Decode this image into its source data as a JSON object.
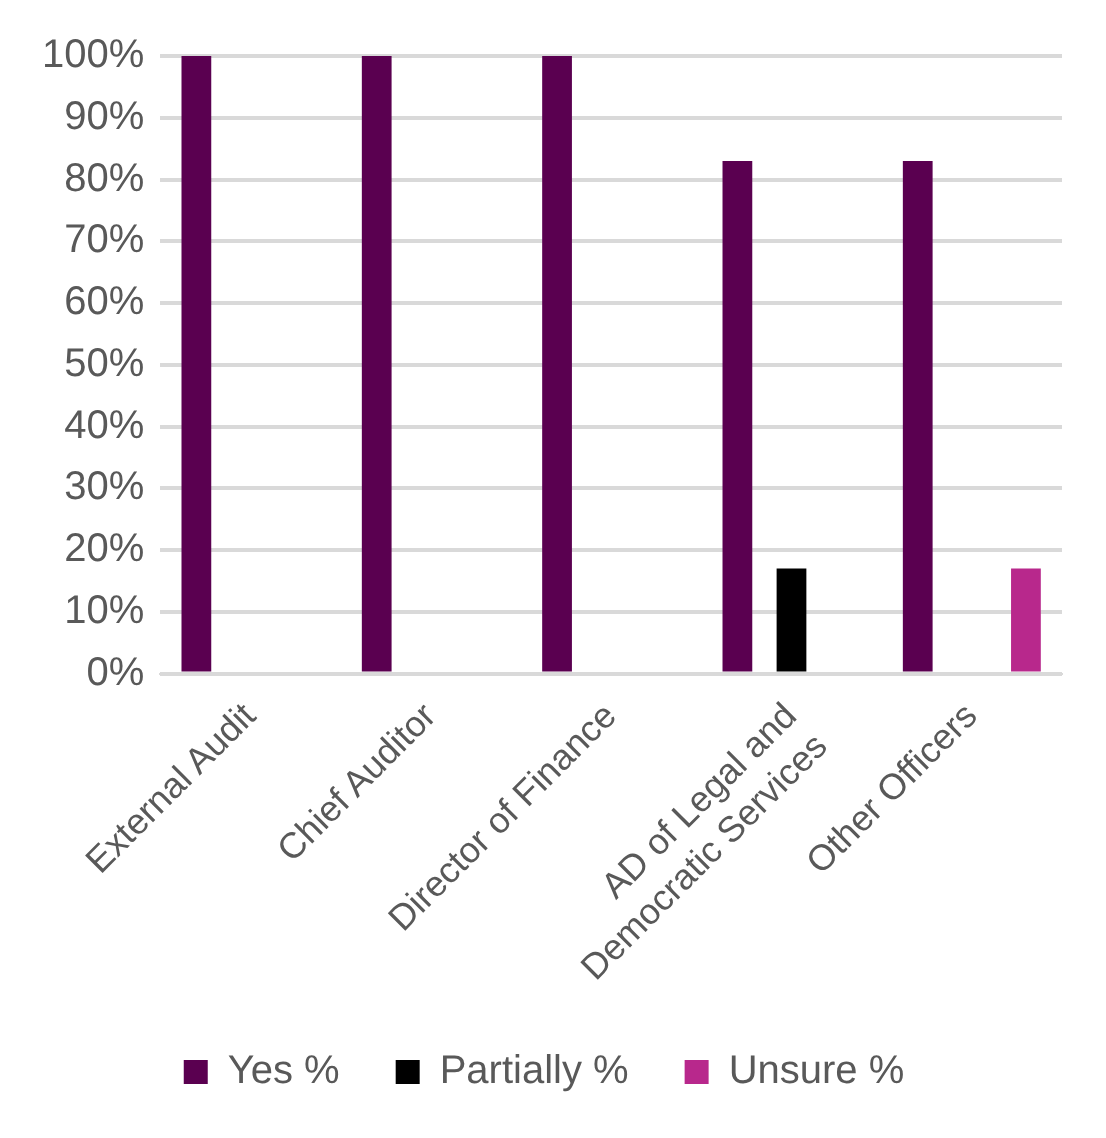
{
  "chart_data": {
    "type": "bar",
    "categories": [
      "External Audit",
      "Chief Auditor",
      "Director of Finance",
      "AD of Legal and Democratic Services",
      "Other Officers"
    ],
    "series": [
      {
        "name": "Yes %",
        "color": "#5a0050",
        "values": [
          100,
          100,
          100,
          83,
          83
        ]
      },
      {
        "name": "Partially %",
        "color": "#000000",
        "values": [
          null,
          null,
          null,
          17,
          null
        ]
      },
      {
        "name": "Unsure %",
        "color": "#b8288c",
        "values": [
          null,
          null,
          null,
          null,
          17
        ]
      }
    ],
    "ylim": [
      0,
      100
    ],
    "yticks": [
      {
        "value": 0,
        "label": "0%"
      },
      {
        "value": 10,
        "label": "10%"
      },
      {
        "value": 20,
        "label": "20%"
      },
      {
        "value": 30,
        "label": "30%"
      },
      {
        "value": 40,
        "label": "40%"
      },
      {
        "value": 50,
        "label": "50%"
      },
      {
        "value": 60,
        "label": "60%"
      },
      {
        "value": 70,
        "label": "70%"
      },
      {
        "value": 80,
        "label": "80%"
      },
      {
        "value": 90,
        "label": "90%"
      },
      {
        "value": 100,
        "label": "100%"
      }
    ],
    "grid": "y",
    "legend": "bottom"
  }
}
